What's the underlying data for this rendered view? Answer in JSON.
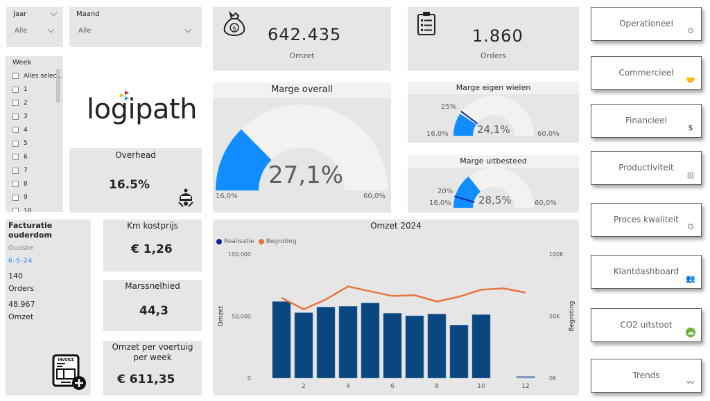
{
  "filters": {
    "jaar": {
      "label": "Jaar",
      "value": "Alle"
    },
    "maand": {
      "label": "Maand",
      "value": "Alle"
    },
    "week": {
      "label": "Week",
      "items": [
        "Alles selec...",
        "1",
        "2",
        "3",
        "4",
        "5",
        "6",
        "7",
        "8",
        "9",
        "10"
      ]
    }
  },
  "logo": {
    "text": "logipath"
  },
  "overhead": {
    "label": "Overhead",
    "value": "16.5%"
  },
  "omzet_card": {
    "value": "642.435",
    "label": "Omzet"
  },
  "orders_card": {
    "value": "1.860",
    "label": "Orders"
  },
  "gauges": {
    "overall": {
      "title": "Marge overall",
      "value_label": "27,1%",
      "min_label": "16,0%",
      "max_label": "60,0%",
      "min": 16.0,
      "max": 60.0,
      "value": 27.1
    },
    "eigen_wielen": {
      "title": "Marge eigen wielen",
      "value_label": "24,1%",
      "min_label": "16,0%",
      "max_label": "60,0%",
      "target_label": "25%",
      "min": 16.0,
      "max": 60.0,
      "value": 24.1,
      "target": 25
    },
    "uitbesteed": {
      "title": "Marge uitbesteed",
      "value_label": "28,5%",
      "min_label": "16,0%",
      "max_label": "60,0%",
      "target_label": "20%",
      "min": 16.0,
      "max": 60.0,
      "value": 28.5,
      "target": 20
    }
  },
  "facturatie": {
    "title_line1": "Facturatie",
    "title_line2": "ouderdom",
    "oudste_label": "Oudste",
    "oudste_date": "6-5-24",
    "orders_value": "140",
    "orders_label": "Orders",
    "omzet_value": "48.967",
    "omzet_label": "Omzet"
  },
  "km_kostprijs": {
    "label": "Km kostprijs",
    "value": "€ 1,26"
  },
  "marssnelhied": {
    "label": "Marssnelhied",
    "value": "44,3"
  },
  "omzet_per_voertuig": {
    "label_line1": "Omzet per voertuig",
    "label_line2": "per week",
    "value": "€ 611,35"
  },
  "nav": [
    {
      "label": "Operationeel",
      "icon": "gear-icon"
    },
    {
      "label": "Commercieel",
      "icon": "handshake-icon"
    },
    {
      "label": "Financieel",
      "icon": "money-bag-icon"
    },
    {
      "label": "Productiviteit",
      "icon": "productivity-icon"
    },
    {
      "label": "Proces kwaliteit",
      "icon": "quality-badge-icon"
    },
    {
      "label": "Klantdashboard",
      "icon": "people-icon"
    },
    {
      "label": "CO2 uitstoot",
      "icon": "cloud-icon"
    },
    {
      "label": "Trends",
      "icon": "trend-icon"
    }
  ],
  "colors": {
    "gauge_fill": "#118dff",
    "gauge_track": "#f3f2f1",
    "target_marker": "#12239e",
    "bar": "#0a4780",
    "line": "#e8743b",
    "date_blue": "#118dff",
    "co2_green": "#6cb33f",
    "handshake_gold": "#f2c811"
  },
  "chart_data": {
    "type": "bar",
    "title": "Omzet 2024",
    "legend": [
      {
        "name": "Realisatie",
        "color": "#12239e"
      },
      {
        "name": "Begroting",
        "color": "#e8743b"
      }
    ],
    "legend_position": "top-left",
    "xlabel": "",
    "ylabel": "Omzet",
    "y2label": "Begroting",
    "x": [
      1,
      2,
      3,
      4,
      5,
      6,
      7,
      8,
      9,
      10,
      11,
      12
    ],
    "x_ticks": [
      "2",
      "4",
      "6",
      "8",
      "10",
      "12"
    ],
    "y_ticks": [
      "0",
      "50.000",
      "100.000"
    ],
    "y2_ticks": [
      "0K",
      "50K",
      "100K"
    ],
    "ylim": [
      0,
      100000
    ],
    "y2lim": [
      0,
      100000
    ],
    "series": [
      {
        "name": "Realisatie",
        "type": "bar",
        "axis": "left",
        "values": [
          61800,
          52800,
          57400,
          58000,
          60700,
          52400,
          50300,
          51800,
          42900,
          51300,
          null,
          1500
        ]
      },
      {
        "name": "Begroting",
        "type": "line",
        "axis": "right",
        "values": [
          64800,
          55500,
          63500,
          74000,
          70000,
          66300,
          66900,
          61800,
          65700,
          71300,
          72400,
          69000
        ]
      }
    ]
  }
}
